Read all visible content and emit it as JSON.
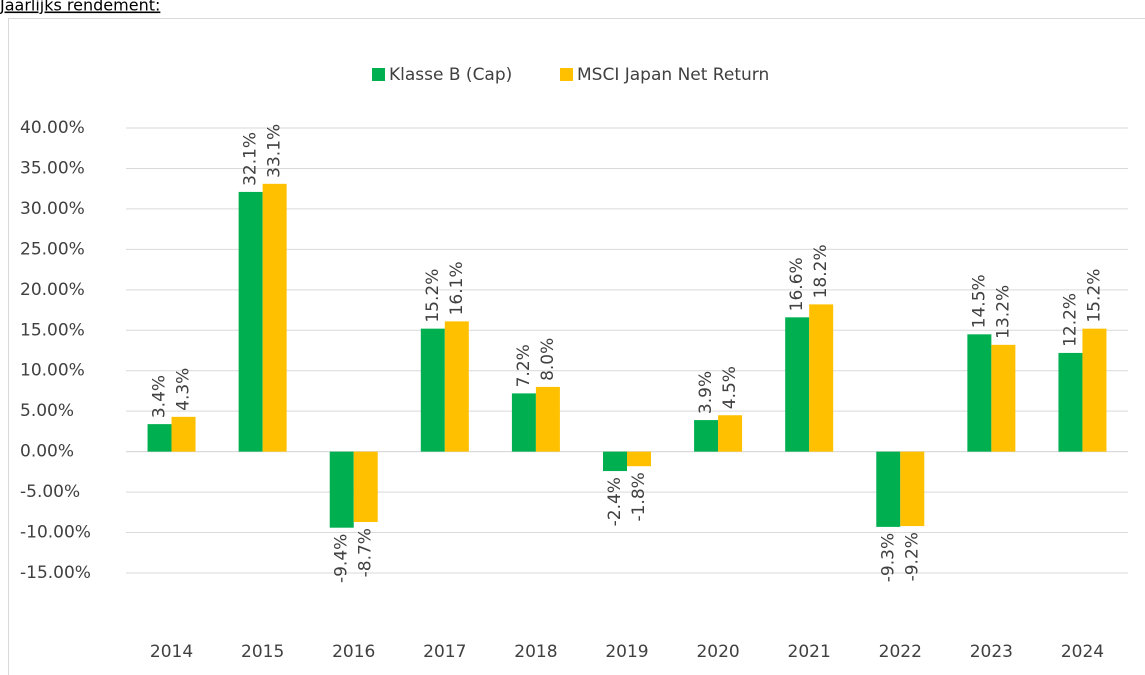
{
  "chart_data": {
    "type": "bar",
    "title": "Jaarlijks rendement:",
    "categories": [
      "2014",
      "2015",
      "2016",
      "2017",
      "2018",
      "2019",
      "2020",
      "2021",
      "2022",
      "2023",
      "2024"
    ],
    "series": [
      {
        "name": "Klasse B (Cap)",
        "color": "#00b050",
        "values": [
          3.4,
          32.1,
          -9.4,
          15.2,
          7.2,
          -2.4,
          3.9,
          16.6,
          -9.3,
          14.5,
          12.2
        ],
        "value_labels": [
          "3.4%",
          "32.1%",
          "-9.4%",
          "15.2%",
          "7.2%",
          "-2.4%",
          "3.9%",
          "16.6%",
          "-9.3%",
          "14.5%",
          "12.2%"
        ]
      },
      {
        "name": "MSCI Japan Net Return",
        "color": "#ffc000",
        "values": [
          4.3,
          33.1,
          -8.7,
          16.1,
          8.0,
          -1.8,
          4.5,
          18.2,
          -9.2,
          13.2,
          15.2
        ],
        "value_labels": [
          "4.3%",
          "33.1%",
          "-8.7%",
          "16.1%",
          "8.0%",
          "-1.8%",
          "4.5%",
          "18.2%",
          "-9.2%",
          "13.2%",
          "15.2%"
        ]
      }
    ],
    "ylim": [
      -15,
      40
    ],
    "yticks": [
      {
        "value": -15,
        "label": "-15.00%"
      },
      {
        "value": -10,
        "label": "-10.00%"
      },
      {
        "value": -5,
        "label": "-5.00%"
      },
      {
        "value": 0,
        "label": "0.00%"
      },
      {
        "value": 5,
        "label": "5.00%"
      },
      {
        "value": 10,
        "label": "10.00%"
      },
      {
        "value": 15,
        "label": "15.00%"
      },
      {
        "value": 20,
        "label": "20.00%"
      },
      {
        "value": 25,
        "label": "25.00%"
      },
      {
        "value": 30,
        "label": "30.00%"
      },
      {
        "value": 35,
        "label": "35.00%"
      },
      {
        "value": 40,
        "label": "40.00%"
      }
    ],
    "grid": true,
    "legend": "top"
  }
}
